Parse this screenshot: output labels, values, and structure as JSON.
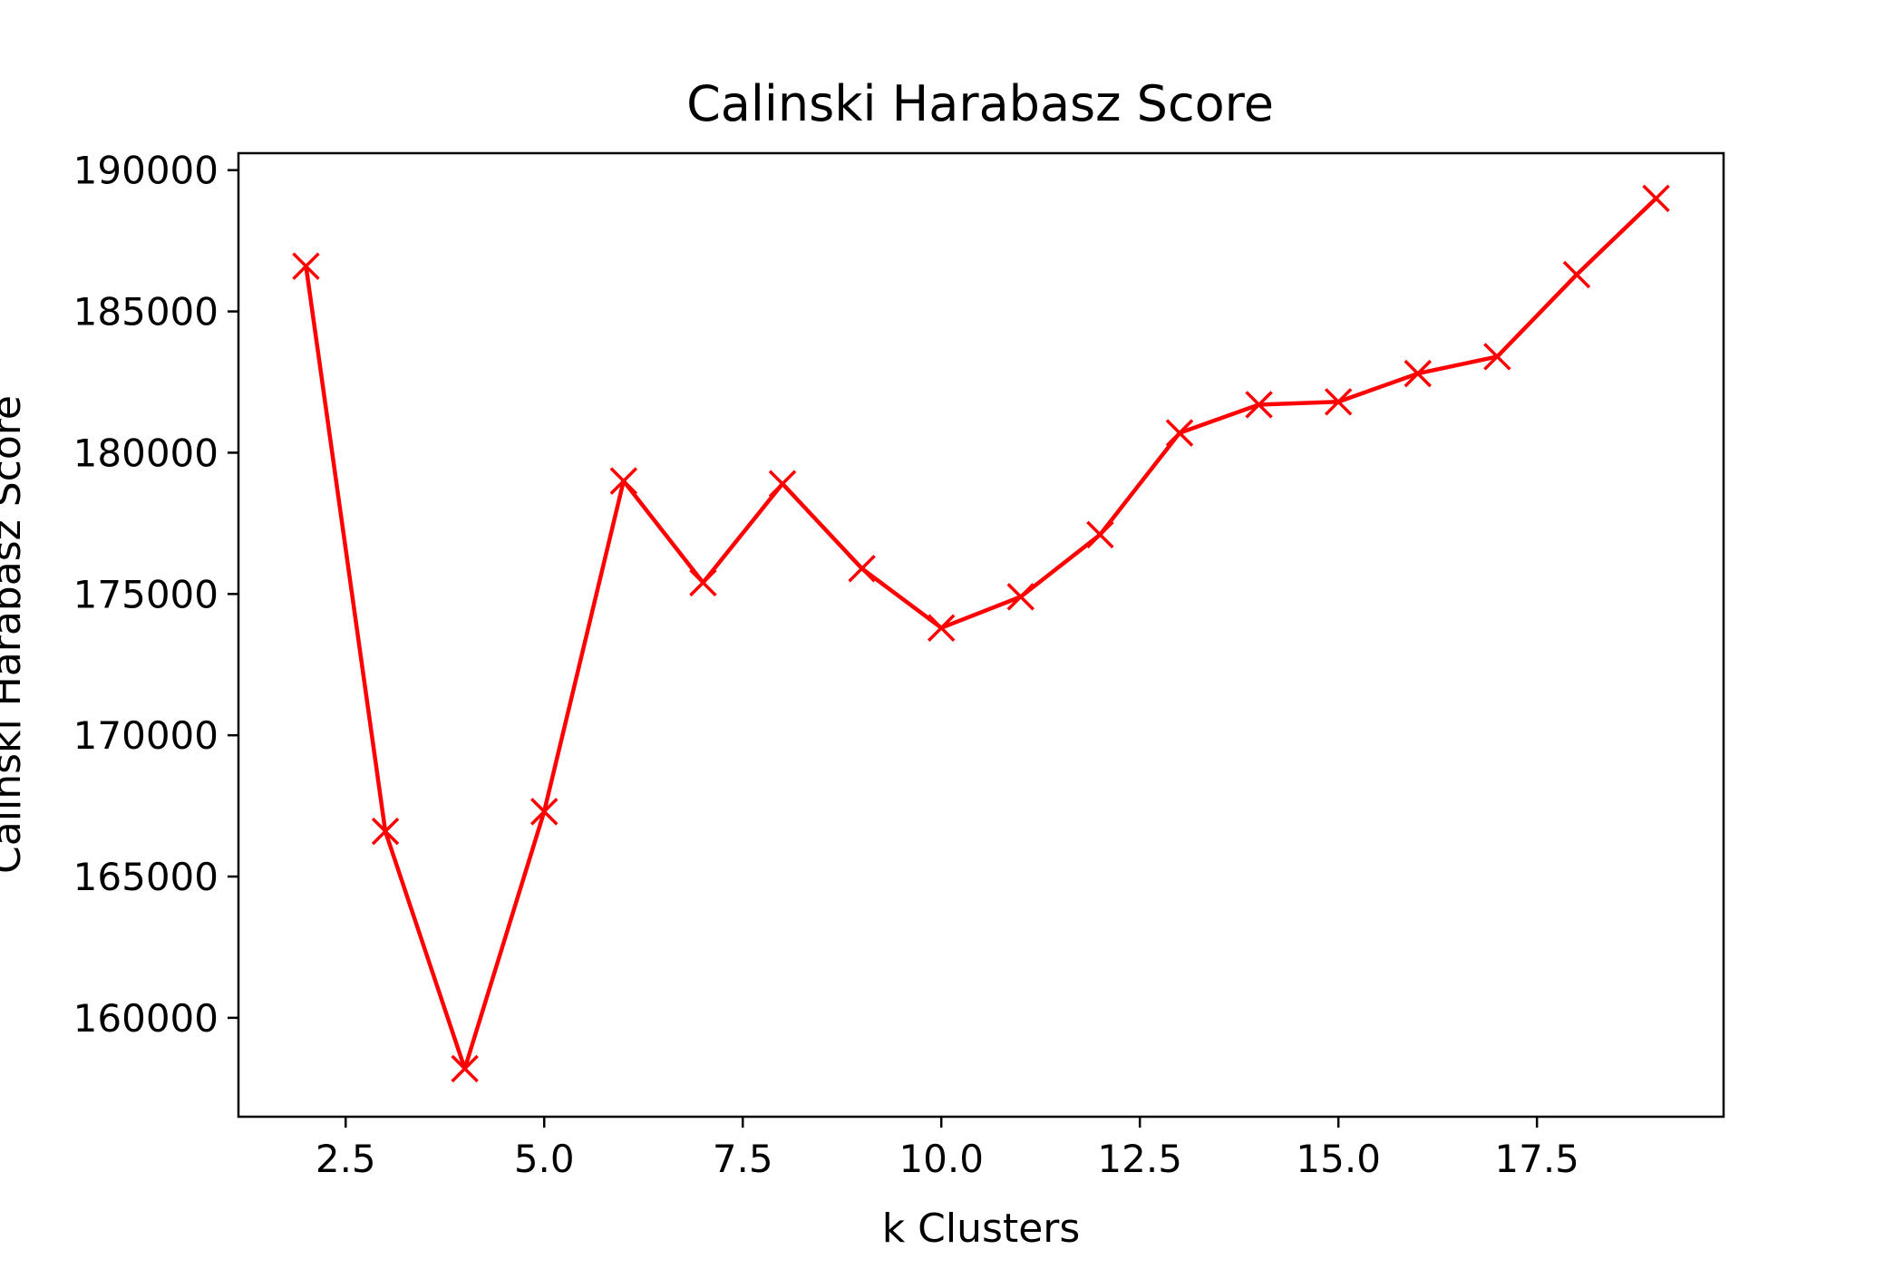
{
  "chart_data": {
    "type": "line",
    "title": "Calinski Harabasz Score",
    "xlabel": "k Clusters",
    "ylabel": "Calinski Harabasz Score",
    "xlim": [
      1.15,
      19.85
    ],
    "ylim": [
      156500,
      190600
    ],
    "xticks": [
      2.5,
      5.0,
      7.5,
      10.0,
      12.5,
      15.0,
      17.5
    ],
    "xtick_labels": [
      "2.5",
      "5.0",
      "7.5",
      "10.0",
      "12.5",
      "15.0",
      "17.5"
    ],
    "yticks": [
      160000,
      165000,
      170000,
      175000,
      180000,
      185000,
      190000
    ],
    "ytick_labels": [
      "160000",
      "165000",
      "170000",
      "175000",
      "180000",
      "185000",
      "190000"
    ],
    "grid": false,
    "legend": "none",
    "series": [
      {
        "color": "#ff0000",
        "marker": "x",
        "x": [
          2,
          3,
          4,
          5,
          6,
          7,
          8,
          9,
          10,
          11,
          12,
          13,
          14,
          15,
          16,
          17,
          18,
          19
        ],
        "y": [
          186600,
          166600,
          158200,
          167300,
          179000,
          175400,
          178900,
          175900,
          173800,
          174900,
          177100,
          180700,
          181700,
          181800,
          182800,
          183400,
          186300,
          189000
        ]
      }
    ]
  }
}
